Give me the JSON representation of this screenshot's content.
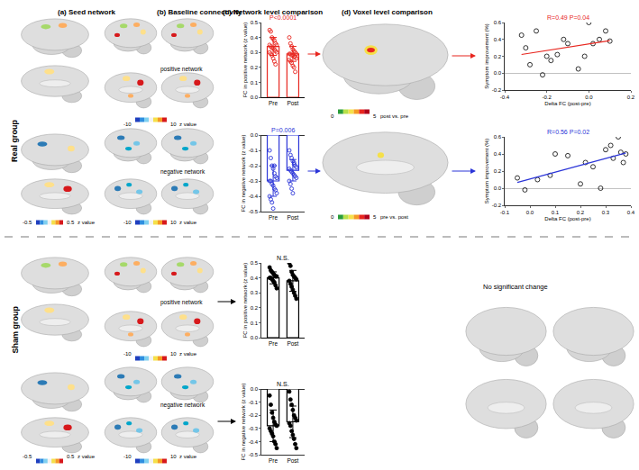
{
  "chart_data": [
    {
      "type": "bar",
      "categories": [
        "Pre",
        "Post"
      ],
      "values": [
        0.34,
        0.29
      ],
      "error": [
        0.06,
        0.05
      ],
      "points": [
        [
          0.45,
          0.44,
          0.4,
          0.39,
          0.38,
          0.36,
          0.35,
          0.35,
          0.34,
          0.33,
          0.33,
          0.32,
          0.31,
          0.3,
          0.3,
          0.29,
          0.28,
          0.26,
          0.24,
          0.22
        ],
        [
          0.4,
          0.36,
          0.34,
          0.32,
          0.31,
          0.3,
          0.29,
          0.29,
          0.29,
          0.28,
          0.28,
          0.27,
          0.27,
          0.26,
          0.25,
          0.24,
          0.23,
          0.21,
          0.2,
          0.17
        ]
      ],
      "color": "#e8261f",
      "marker": "circle-open",
      "ylabel": "FC in positive network (z value)",
      "ylim": [
        0,
        0.5
      ],
      "yticks": [
        {
          "value": 0,
          "label": "0.0"
        },
        0.1,
        0.2,
        0.3,
        0.4,
        0.5
      ],
      "grid": false,
      "annotations": [
        "P<0.0001"
      ]
    },
    {
      "type": "bar",
      "categories": [
        "Pre",
        "Post"
      ],
      "values": [
        -0.3,
        -0.23
      ],
      "error": [
        0.1,
        0.07
      ],
      "points": [
        [
          -0.1,
          -0.15,
          -0.2,
          -0.22,
          -0.25,
          -0.27,
          -0.28,
          -0.3,
          -0.3,
          -0.32,
          -0.33,
          -0.35,
          -0.36,
          -0.38,
          -0.4,
          -0.42,
          -0.44,
          -0.48,
          -0.2
        ],
        [
          -0.1,
          -0.13,
          -0.15,
          -0.17,
          -0.19,
          -0.2,
          -0.21,
          -0.22,
          -0.23,
          -0.24,
          -0.25,
          -0.26,
          -0.27,
          -0.28,
          -0.3,
          -0.32,
          -0.35,
          -0.38,
          -0.18
        ]
      ],
      "color": "#2b35d8",
      "marker": "circle-open",
      "ylabel": "FC in negative network (z value)",
      "ylim": [
        -0.5,
        0
      ],
      "yticks": [
        -0.5,
        -0.4,
        -0.3,
        -0.2,
        -0.1,
        {
          "value": 0,
          "label": "0.0"
        }
      ],
      "grid": false,
      "annotations": [
        "P=0.006"
      ]
    },
    {
      "type": "bar",
      "categories": [
        "Pre",
        "Post"
      ],
      "values": [
        0.4,
        0.38
      ],
      "error": [
        0.04,
        0.07
      ],
      "points": [
        [
          0.47,
          0.45,
          0.44,
          0.43,
          0.42,
          0.41,
          0.41,
          0.4,
          0.4,
          0.39,
          0.38,
          0.37,
          0.35,
          0.33
        ],
        [
          0.5,
          0.48,
          0.44,
          0.42,
          0.41,
          0.4,
          0.39,
          0.38,
          0.36,
          0.34,
          0.32,
          0.3,
          0.28,
          0.26
        ]
      ],
      "color": "#000000",
      "marker": "circle",
      "ylabel": "FC in positive network (z value)",
      "ylim": [
        0,
        0.5
      ],
      "yticks": [
        {
          "value": 0,
          "label": "0.0"
        },
        0.1,
        0.2,
        0.3,
        0.4,
        0.5
      ],
      "grid": false,
      "annotations": [
        "N.S."
      ]
    },
    {
      "type": "bar",
      "categories": [
        "Pre",
        "Post"
      ],
      "values": [
        -0.28,
        -0.25
      ],
      "error": [
        0.12,
        0.12
      ],
      "points": [
        [
          -0.05,
          -0.12,
          -0.18,
          -0.22,
          -0.25,
          -0.27,
          -0.28,
          -0.3,
          -0.32,
          -0.34,
          -0.36,
          -0.4,
          -0.42,
          -0.45
        ],
        [
          -0.02,
          -0.08,
          -0.12,
          -0.16,
          -0.2,
          -0.22,
          -0.24,
          -0.26,
          -0.28,
          -0.32,
          -0.35,
          -0.38,
          -0.42,
          -0.45
        ]
      ],
      "color": "#000000",
      "marker": "circle",
      "ylabel": "FC in negative network (z value)",
      "ylim": [
        -0.5,
        0
      ],
      "yticks": [
        -0.5,
        -0.4,
        -0.3,
        -0.2,
        -0.1,
        {
          "value": 0,
          "label": "0.0"
        }
      ],
      "grid": false,
      "annotations": [
        "N.S."
      ]
    },
    {
      "type": "scatter",
      "x": [
        -0.32,
        -0.3,
        -0.28,
        -0.25,
        -0.22,
        -0.2,
        -0.18,
        -0.15,
        -0.12,
        -0.1,
        -0.05,
        -0.02,
        0.0,
        0.02,
        0.05,
        0.08,
        0.1
      ],
      "y": [
        0.45,
        0.3,
        0.1,
        0.5,
        -0.02,
        0.2,
        0.15,
        0.22,
        0.4,
        0.35,
        0.05,
        0.2,
        0.6,
        0.35,
        0.4,
        0.5,
        0.38
      ],
      "color": "#e8261f",
      "marker": "circle-open",
      "xlabel": "Delta FC (post-pre)",
      "ylabel": "Symptom improvement (%)",
      "xlim": [
        -0.4,
        0.2
      ],
      "xticks": [
        -0.4,
        -0.2,
        {
          "value": 0,
          "label": "0.0"
        },
        0.2
      ],
      "ylim": [
        -0.2,
        0.6
      ],
      "yticks": [
        -0.2,
        {
          "value": 0,
          "label": "0.0"
        },
        0.2,
        0.4,
        0.6
      ],
      "grid": false,
      "annotations": [
        "R=0.49 P=0.04"
      ]
    },
    {
      "type": "scatter",
      "x": [
        -0.05,
        -0.02,
        0.03,
        0.08,
        0.1,
        0.15,
        0.2,
        0.22,
        0.25,
        0.28,
        0.3,
        0.32,
        0.33,
        0.35,
        0.36,
        0.37,
        0.38
      ],
      "y": [
        0.12,
        -0.02,
        0.1,
        0.15,
        0.4,
        0.38,
        0.05,
        0.3,
        0.25,
        0.0,
        0.45,
        0.5,
        0.35,
        0.6,
        0.42,
        0.3,
        0.4
      ],
      "color": "#2b35d8",
      "marker": "circle-open",
      "xlabel": "Delta FC (post-pre)",
      "ylabel": "Symptom improvement (%)",
      "xlim": [
        -0.1,
        0.4
      ],
      "xticks": [
        -0.1,
        {
          "value": 0,
          "label": "0.0"
        },
        0.1,
        0.2,
        0.3,
        0.4
      ],
      "ylim": [
        -0.2,
        0.6
      ],
      "yticks": [
        -0.2,
        {
          "value": 0,
          "label": "0.0"
        },
        0.2,
        0.4,
        0.6
      ],
      "grid": false,
      "annotations": [
        "R=0.56 P=0.02"
      ]
    }
  ],
  "figure": {
    "groups": [
      "Real group",
      "Sham group"
    ],
    "panels": [
      "(a) Seed network",
      "(b) Baseline connectivity",
      "(c) Network level comparison",
      "(d) Voxel level comparison"
    ],
    "networks": [
      "positive network",
      "negative network"
    ],
    "colorbars": {
      "seed": {
        "label": "z value",
        "ticks": [
          "-0.5",
          "0.5"
        ]
      },
      "baseline": {
        "label": "z value",
        "ticks": [
          "-10",
          "10"
        ]
      },
      "post_vs_pre": {
        "label": "post vs. pre",
        "ticks": [
          "0",
          "5"
        ]
      },
      "pre_vs_post": {
        "label": "pre vs. post",
        "ticks": [
          "0",
          "5"
        ]
      }
    },
    "no_change": "No significant change"
  }
}
